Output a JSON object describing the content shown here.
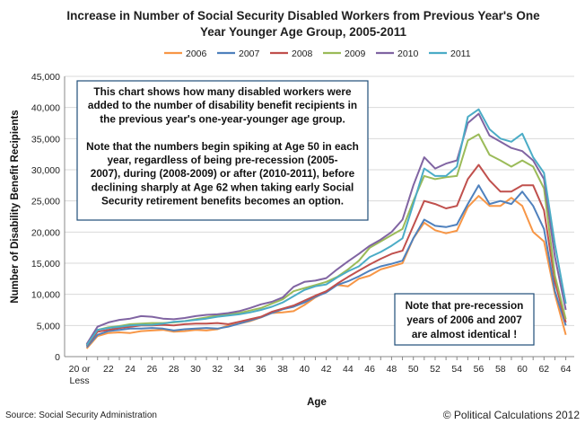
{
  "chart_data": {
    "type": "line",
    "title_lines": [
      "Increase in Number of Social Security Disabled Workers from Previous Year's One",
      "Year Younger Age Group, 2005-2011"
    ],
    "xlabel": "Age",
    "ylabel": "Number of Disability Benefit Recipients",
    "ylim": [
      0,
      45000
    ],
    "y_ticks": [
      "0",
      "5,000",
      "10,000",
      "15,000",
      "20,000",
      "25,000",
      "30,000",
      "35,000",
      "40,000",
      "45,000"
    ],
    "x_first_label": [
      "20 or",
      "Less"
    ],
    "x_ticks": [
      "22",
      "24",
      "26",
      "28",
      "30",
      "32",
      "34",
      "36",
      "38",
      "40",
      "42",
      "44",
      "46",
      "48",
      "50",
      "52",
      "54",
      "56",
      "58",
      "60",
      "62",
      "64"
    ],
    "categories": [
      "20",
      "21",
      "22",
      "23",
      "24",
      "25",
      "26",
      "27",
      "28",
      "29",
      "30",
      "31",
      "32",
      "33",
      "34",
      "35",
      "36",
      "37",
      "38",
      "39",
      "40",
      "41",
      "42",
      "43",
      "44",
      "45",
      "46",
      "47",
      "48",
      "49",
      "50",
      "51",
      "52",
      "53",
      "54",
      "55",
      "56",
      "57",
      "58",
      "59",
      "60",
      "61",
      "62",
      "63",
      "64"
    ],
    "grid": true,
    "legend_position": "top",
    "series": [
      {
        "name": "2006",
        "color": "#f79646",
        "values": [
          1300,
          3300,
          3800,
          3900,
          3800,
          4100,
          4200,
          4300,
          4000,
          4100,
          4300,
          4200,
          4400,
          5000,
          5300,
          5700,
          6300,
          7000,
          7100,
          7300,
          8300,
          9500,
          10500,
          11500,
          11300,
          12500,
          13000,
          14000,
          14500,
          15000,
          19000,
          21500,
          20300,
          19800,
          20200,
          24000,
          25800,
          24200,
          24200,
          25500,
          24200,
          20000,
          18500,
          10000,
          3500
        ]
      },
      {
        "name": "2007",
        "color": "#4f81bd",
        "values": [
          1500,
          3500,
          4100,
          4300,
          4500,
          4500,
          4600,
          4500,
          4200,
          4400,
          4500,
          4600,
          4500,
          4800,
          5300,
          5800,
          6300,
          7000,
          7600,
          8000,
          8700,
          9600,
          10300,
          11500,
          12100,
          12900,
          13800,
          14500,
          14900,
          15400,
          19000,
          22000,
          21000,
          20800,
          21200,
          24500,
          27500,
          24500,
          25000,
          24500,
          26500,
          24200,
          20500,
          10500,
          5000
        ]
      },
      {
        "name": "2008",
        "color": "#c0504d",
        "values": [
          1700,
          4000,
          4300,
          4600,
          4800,
          5000,
          5000,
          5100,
          5000,
          5200,
          5300,
          5300,
          5400,
          5200,
          5600,
          6000,
          6400,
          7200,
          7700,
          8200,
          9000,
          9800,
          10500,
          11700,
          12800,
          13800,
          14800,
          15700,
          16500,
          17000,
          21000,
          25000,
          24500,
          23800,
          24200,
          28500,
          30800,
          28300,
          26500,
          26500,
          27500,
          27500,
          23500,
          12000,
          5500
        ]
      },
      {
        "name": "2009",
        "color": "#9bbb59",
        "values": [
          1900,
          4300,
          4700,
          4900,
          5200,
          5300,
          5400,
          5400,
          5500,
          5700,
          6000,
          6300,
          6600,
          6800,
          7000,
          7400,
          7800,
          8500,
          9200,
          10500,
          11000,
          11500,
          12000,
          12800,
          14000,
          15400,
          17500,
          18500,
          19500,
          20500,
          25000,
          29000,
          28500,
          28800,
          29000,
          34700,
          35700,
          32400,
          31500,
          30500,
          31500,
          30500,
          27000,
          13000,
          6000
        ]
      },
      {
        "name": "2010",
        "color": "#8064a2",
        "values": [
          2000,
          4800,
          5500,
          5900,
          6100,
          6500,
          6400,
          6100,
          6000,
          6200,
          6500,
          6700,
          6800,
          7000,
          7300,
          7800,
          8400,
          8800,
          9500,
          11200,
          12000,
          12200,
          12600,
          14000,
          15300,
          16500,
          17800,
          18800,
          20000,
          22000,
          27500,
          32000,
          30200,
          31000,
          31500,
          37500,
          39000,
          35500,
          34500,
          33500,
          33000,
          31500,
          28500,
          16000,
          7500
        ]
      },
      {
        "name": "2011",
        "color": "#4bacc6",
        "values": [
          1800,
          4300,
          4600,
          4800,
          5000,
          5100,
          5100,
          5300,
          5600,
          5700,
          5900,
          6100,
          6400,
          6600,
          6800,
          7100,
          7500,
          8000,
          8700,
          9700,
          10700,
          11300,
          11600,
          12700,
          13700,
          14500,
          16000,
          16800,
          17800,
          19000,
          24500,
          30200,
          29000,
          29000,
          30500,
          38500,
          39700,
          36500,
          35000,
          34500,
          35800,
          32000,
          29500,
          18000,
          8500
        ]
      }
    ],
    "annotations": [
      {
        "id": "main-note",
        "lines": [
          "This chart shows how many disabled workers were",
          "added to the number of disability benefit recipients in",
          "the previous year's one-year-younger age group.",
          "",
          "Note that the numbers begin spiking at Age 50 in each",
          "year, regardless of being pre-recession (2005-",
          "2007), during (2008-2009) or after (2010-2011), before",
          "declining sharply at Age 62 when taking early Social",
          "Security retirement benefits becomes an option."
        ]
      },
      {
        "id": "side-note",
        "lines": [
          "Note that pre-recession",
          "years of 2006 and 2007",
          "are almost identical !"
        ]
      }
    ]
  },
  "footer": {
    "source": "Source: Social Security Administration",
    "credit": "© Political Calculations 2012"
  }
}
